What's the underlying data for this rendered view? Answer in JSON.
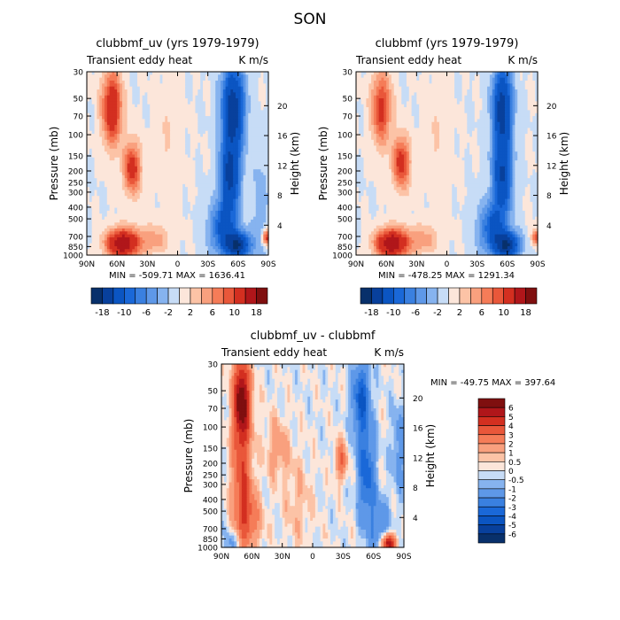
{
  "page_title": "SON",
  "chart_data": [
    {
      "id": "panel1",
      "type": "heatmap",
      "title": "clubbmf_uv (yrs 1979-1979)",
      "left_label": "Transient eddy heat",
      "right_label": "K m/s",
      "ylabel": "Pressure (mb)",
      "ylabel_right": "Height (km)",
      "x_ticks": [
        "90N",
        "60N",
        "30N",
        "0",
        "30S",
        "60S",
        "90S"
      ],
      "p_ticks": [
        "30",
        "50",
        "70",
        "100",
        "150",
        "200",
        "250",
        "300",
        "400",
        "500",
        "700",
        "850",
        "1000"
      ],
      "p_values": [
        30,
        50,
        70,
        100,
        150,
        200,
        250,
        300,
        400,
        500,
        700,
        850,
        1000
      ],
      "z_ticks": [
        "4",
        "8",
        "12",
        "16",
        "20"
      ],
      "z_values": [
        4,
        8,
        12,
        16,
        20
      ],
      "minmax": "MIN = -509.71   MAX = 1636.41",
      "colorbar": {
        "labels": [
          "-18",
          "-10",
          "-6",
          "-2",
          "2",
          "6",
          "10",
          "18"
        ],
        "levels": [
          -18,
          -14,
          -10,
          -8,
          -6,
          -4,
          -2,
          0,
          2,
          4,
          6,
          8,
          10,
          14,
          18
        ],
        "colors": [
          "#08306b",
          "#08409c",
          "#0b55c2",
          "#1a68d8",
          "#3a80e0",
          "#5e98e8",
          "#86b3ef",
          "#c7dcf6",
          "#fce6da",
          "#fcc3a6",
          "#f9a07e",
          "#f57c58",
          "#e9573a",
          "#d32f20",
          "#b0161a",
          "#7f0f0f"
        ]
      },
      "field": [
        {
          "lat": 65,
          "p": 60,
          "amp": 14,
          "wl": 7,
          "wp": 0.5
        },
        {
          "lat": 45,
          "p": 190,
          "amp": 12,
          "wl": 6,
          "wp": 0.35
        },
        {
          "lat": 55,
          "p": 800,
          "amp": 18,
          "wl": 11,
          "wp": 0.2
        },
        {
          "lat": 25,
          "p": 750,
          "amp": 5,
          "wl": 12,
          "wp": 0.2
        },
        {
          "lat": 10,
          "p": 120,
          "amp": 2,
          "wl": 10,
          "wp": 0.8
        },
        {
          "lat": -55,
          "p": 60,
          "amp": -17,
          "wl": 8,
          "wp": 0.6
        },
        {
          "lat": -52,
          "p": 230,
          "amp": -14,
          "wl": 7,
          "wp": 0.5
        },
        {
          "lat": -45,
          "p": 600,
          "amp": -10,
          "wl": 10,
          "wp": 0.35
        },
        {
          "lat": -60,
          "p": 830,
          "amp": -16,
          "wl": 9,
          "wp": 0.18
        },
        {
          "lat": -82,
          "p": 400,
          "amp": -3,
          "wl": 6,
          "wp": 0.9
        },
        {
          "lat": -88,
          "p": 720,
          "amp": 12,
          "wl": 3,
          "wp": 0.1
        }
      ]
    },
    {
      "id": "panel2",
      "type": "heatmap",
      "title": "clubbmf (yrs 1979-1979)",
      "left_label": "Transient eddy heat",
      "right_label": "K m/s",
      "ylabel": "Pressure (mb)",
      "ylabel_right": "Height (km)",
      "x_ticks": [
        "90N",
        "60N",
        "30N",
        "0",
        "30S",
        "60S",
        "90S"
      ],
      "p_ticks": [
        "30",
        "50",
        "70",
        "100",
        "150",
        "200",
        "250",
        "300",
        "400",
        "500",
        "700",
        "850",
        "1000"
      ],
      "p_values": [
        30,
        50,
        70,
        100,
        150,
        200,
        250,
        300,
        400,
        500,
        700,
        850,
        1000
      ],
      "z_ticks": [
        "4",
        "8",
        "12",
        "16",
        "20"
      ],
      "z_values": [
        4,
        8,
        12,
        16,
        20
      ],
      "minmax": "MIN = -478.25   MAX = 1291.34",
      "colorbar": {
        "labels": [
          "-18",
          "-10",
          "-6",
          "-2",
          "2",
          "6",
          "10",
          "18"
        ],
        "levels": [
          -18,
          -14,
          -10,
          -8,
          -6,
          -4,
          -2,
          0,
          2,
          4,
          6,
          8,
          10,
          14,
          18
        ],
        "colors": [
          "#08306b",
          "#08409c",
          "#0b55c2",
          "#1a68d8",
          "#3a80e0",
          "#5e98e8",
          "#86b3ef",
          "#c7dcf6",
          "#fce6da",
          "#fcc3a6",
          "#f9a07e",
          "#f57c58",
          "#e9573a",
          "#d32f20",
          "#b0161a",
          "#7f0f0f"
        ]
      },
      "field": [
        {
          "lat": 65,
          "p": 60,
          "amp": 11,
          "wl": 7,
          "wp": 0.5
        },
        {
          "lat": 45,
          "p": 170,
          "amp": 12,
          "wl": 6,
          "wp": 0.35
        },
        {
          "lat": 55,
          "p": 800,
          "amp": 18,
          "wl": 11,
          "wp": 0.2
        },
        {
          "lat": 25,
          "p": 750,
          "amp": 5,
          "wl": 12,
          "wp": 0.2
        },
        {
          "lat": 10,
          "p": 120,
          "amp": 2,
          "wl": 10,
          "wp": 0.8
        },
        {
          "lat": -55,
          "p": 60,
          "amp": -16,
          "wl": 7,
          "wp": 0.6
        },
        {
          "lat": -55,
          "p": 230,
          "amp": -13,
          "wl": 7,
          "wp": 0.5
        },
        {
          "lat": -45,
          "p": 600,
          "amp": -10,
          "wl": 10,
          "wp": 0.35
        },
        {
          "lat": -60,
          "p": 830,
          "amp": -16,
          "wl": 9,
          "wp": 0.18
        },
        {
          "lat": -88,
          "p": 720,
          "amp": 10,
          "wl": 3,
          "wp": 0.1
        }
      ]
    },
    {
      "id": "panel3",
      "type": "heatmap",
      "title": "clubbmf_uv - clubbmf",
      "left_label": "Transient eddy heat",
      "right_label": "K m/s",
      "ylabel": "Pressure (mb)",
      "ylabel_right": "Height (km)",
      "x_ticks": [
        "90N",
        "60N",
        "30N",
        "0",
        "30S",
        "60S",
        "90S"
      ],
      "p_ticks": [
        "30",
        "50",
        "70",
        "100",
        "150",
        "200",
        "250",
        "300",
        "400",
        "500",
        "700",
        "850",
        "1000"
      ],
      "p_values": [
        30,
        50,
        70,
        100,
        150,
        200,
        250,
        300,
        400,
        500,
        700,
        850,
        1000
      ],
      "z_ticks": [
        "4",
        "8",
        "12",
        "16",
        "20"
      ],
      "z_values": [
        4,
        8,
        12,
        16,
        20
      ],
      "minmax": "MIN = -49.75   MAX = 397.64",
      "colorbar": {
        "labels": [
          "6",
          "5",
          "4",
          "3",
          "2",
          "1",
          "0.5",
          "0",
          "-0.5",
          "-1",
          "-2",
          "-3",
          "-4",
          "-5",
          "-6"
        ],
        "levels": [
          -6,
          -5,
          -4,
          -3,
          -2,
          -1,
          -0.5,
          0,
          0.5,
          1,
          2,
          3,
          4,
          5,
          6
        ],
        "colors": [
          "#08306b",
          "#08409c",
          "#0b55c2",
          "#1a68d8",
          "#3a80e0",
          "#5e98e8",
          "#86b3ef",
          "#c7dcf6",
          "#fce6da",
          "#fcc3a6",
          "#f9a07e",
          "#f57c58",
          "#e9573a",
          "#d32f20",
          "#b0161a",
          "#7f0f0f"
        ]
      },
      "field": [
        {
          "lat": 70,
          "p": 60,
          "amp": 7,
          "wl": 6,
          "wp": 0.6
        },
        {
          "lat": 70,
          "p": 300,
          "amp": 3.5,
          "wl": 7,
          "wp": 0.7
        },
        {
          "lat": 62,
          "p": 600,
          "amp": 2.5,
          "wl": 8,
          "wp": 0.4
        },
        {
          "lat": 35,
          "p": 150,
          "amp": 1.5,
          "wl": 8,
          "wp": 0.4
        },
        {
          "lat": 15,
          "p": 400,
          "amp": 0.9,
          "wl": 10,
          "wp": 0.6
        },
        {
          "lat": -28,
          "p": 190,
          "amp": 3,
          "wl": 4,
          "wp": 0.25
        },
        {
          "lat": -48,
          "p": 60,
          "amp": -4,
          "wl": 6,
          "wp": 0.5
        },
        {
          "lat": -53,
          "p": 250,
          "amp": -3.5,
          "wl": 6,
          "wp": 0.6
        },
        {
          "lat": -65,
          "p": 700,
          "amp": -2,
          "wl": 7,
          "wp": 0.4
        },
        {
          "lat": -75,
          "p": 920,
          "amp": 6,
          "wl": 5,
          "wp": 0.12
        },
        {
          "lat": -85,
          "p": 150,
          "amp": -1.5,
          "wl": 5,
          "wp": 0.6
        },
        {
          "lat": 80,
          "p": 900,
          "amp": -1.5,
          "wl": 5,
          "wp": 0.15
        }
      ]
    }
  ]
}
